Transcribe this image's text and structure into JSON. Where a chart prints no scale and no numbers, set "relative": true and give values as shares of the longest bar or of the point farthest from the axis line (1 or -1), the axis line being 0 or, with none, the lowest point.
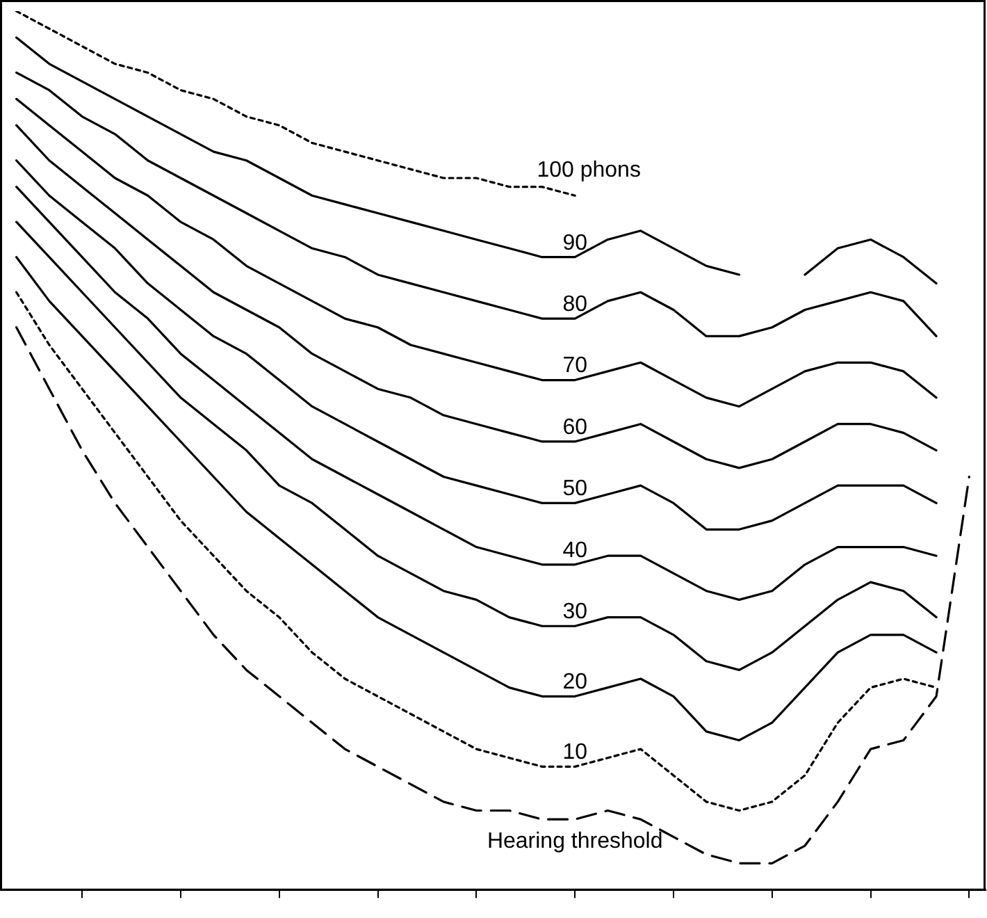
{
  "chart_data": {
    "type": "line",
    "relative": true,
    "legend": false,
    "grid": false,
    "marker": "none",
    "categories": [
      null,
      null,
      null,
      null,
      null,
      null,
      null,
      null,
      null,
      null,
      null,
      null,
      null,
      null,
      null,
      null,
      null,
      null,
      null,
      null,
      null,
      null,
      null,
      null,
      null,
      null,
      null,
      null,
      null,
      null
    ],
    "series": [
      {
        "name": "100 phons",
        "color": "#000000",
        "line_style": "dotted",
        "values": [
          1.0,
          0.98,
          0.96,
          0.94,
          0.93,
          0.91,
          0.9,
          0.88,
          0.87,
          0.85,
          0.84,
          0.83,
          0.82,
          0.81,
          0.81,
          0.8,
          0.8,
          0.79,
          null,
          null,
          null,
          null,
          null,
          null,
          null,
          null,
          null,
          null,
          null,
          null
        ]
      },
      {
        "name": "90",
        "color": "#000000",
        "line_style": "solid",
        "values": [
          0.97,
          0.94,
          0.92,
          0.9,
          0.88,
          0.86,
          0.84,
          0.83,
          0.81,
          0.79,
          0.78,
          0.77,
          0.76,
          0.75,
          0.74,
          0.73,
          0.72,
          0.72,
          0.74,
          0.75,
          0.73,
          0.71,
          0.7,
          null,
          0.7,
          0.73,
          0.74,
          0.72,
          0.69,
          null
        ]
      },
      {
        "name": "80",
        "color": "#000000",
        "line_style": "solid",
        "values": [
          0.93,
          0.91,
          0.88,
          0.86,
          0.83,
          0.81,
          0.79,
          0.77,
          0.75,
          0.73,
          0.72,
          0.7,
          0.69,
          0.68,
          0.67,
          0.66,
          0.65,
          0.65,
          0.67,
          0.68,
          0.66,
          0.63,
          0.63,
          0.64,
          0.66,
          0.67,
          0.68,
          0.67,
          0.63,
          null
        ]
      },
      {
        "name": "70",
        "color": "#000000",
        "line_style": "solid",
        "values": [
          0.9,
          0.87,
          0.84,
          0.81,
          0.79,
          0.76,
          0.74,
          0.71,
          0.69,
          0.67,
          0.65,
          0.64,
          0.62,
          0.61,
          0.6,
          0.59,
          0.58,
          0.58,
          0.59,
          0.6,
          0.58,
          0.56,
          0.55,
          0.57,
          0.59,
          0.6,
          0.6,
          0.59,
          0.56,
          null
        ]
      },
      {
        "name": "60",
        "color": "#000000",
        "line_style": "solid",
        "values": [
          0.87,
          0.83,
          0.8,
          0.77,
          0.74,
          0.71,
          0.68,
          0.66,
          0.64,
          0.61,
          0.59,
          0.57,
          0.56,
          0.54,
          0.53,
          0.52,
          0.51,
          0.51,
          0.52,
          0.53,
          0.51,
          0.49,
          0.48,
          0.49,
          0.51,
          0.53,
          0.53,
          0.52,
          0.5,
          null
        ]
      },
      {
        "name": "50",
        "color": "#000000",
        "line_style": "solid",
        "values": [
          0.83,
          0.79,
          0.76,
          0.73,
          0.69,
          0.66,
          0.63,
          0.61,
          0.58,
          0.55,
          0.53,
          0.51,
          0.49,
          0.47,
          0.46,
          0.45,
          0.44,
          0.44,
          0.45,
          0.46,
          0.44,
          0.41,
          0.41,
          0.42,
          0.44,
          0.46,
          0.46,
          0.46,
          0.44,
          null
        ]
      },
      {
        "name": "40",
        "color": "#000000",
        "line_style": "solid",
        "values": [
          0.8,
          0.76,
          0.72,
          0.68,
          0.65,
          0.61,
          0.58,
          0.55,
          0.52,
          0.49,
          0.47,
          0.45,
          0.43,
          0.41,
          0.39,
          0.38,
          0.37,
          0.37,
          0.38,
          0.38,
          0.36,
          0.34,
          0.33,
          0.34,
          0.37,
          0.39,
          0.39,
          0.39,
          0.38,
          null
        ]
      },
      {
        "name": "30",
        "color": "#000000",
        "line_style": "solid",
        "values": [
          0.76,
          0.72,
          0.68,
          0.64,
          0.6,
          0.56,
          0.53,
          0.5,
          0.46,
          0.44,
          0.41,
          0.38,
          0.36,
          0.34,
          0.33,
          0.31,
          0.3,
          0.3,
          0.31,
          0.31,
          0.29,
          0.26,
          0.25,
          0.27,
          0.3,
          0.33,
          0.35,
          0.34,
          0.31,
          null
        ]
      },
      {
        "name": "20",
        "color": "#000000",
        "line_style": "solid",
        "values": [
          0.72,
          0.67,
          0.63,
          0.59,
          0.55,
          0.51,
          0.47,
          0.43,
          0.4,
          0.37,
          0.34,
          0.31,
          0.29,
          0.27,
          0.25,
          0.23,
          0.22,
          0.22,
          0.23,
          0.24,
          0.22,
          0.18,
          0.17,
          0.19,
          0.23,
          0.27,
          0.29,
          0.29,
          0.27,
          null
        ]
      },
      {
        "name": "10",
        "color": "#000000",
        "line_style": "dotted",
        "values": [
          0.68,
          0.62,
          0.57,
          0.52,
          0.47,
          0.42,
          0.38,
          0.34,
          0.31,
          0.27,
          0.24,
          0.22,
          0.2,
          0.18,
          0.16,
          0.15,
          0.14,
          0.14,
          0.15,
          0.16,
          0.13,
          0.1,
          0.09,
          0.1,
          0.13,
          0.19,
          0.23,
          0.24,
          0.23,
          null
        ]
      },
      {
        "name": "Hearing threshold",
        "color": "#000000",
        "line_style": "dashed",
        "values": [
          0.64,
          0.57,
          0.5,
          0.44,
          0.39,
          0.34,
          0.29,
          0.25,
          0.22,
          0.19,
          0.16,
          0.14,
          0.12,
          0.1,
          0.09,
          0.09,
          0.08,
          0.08,
          0.09,
          0.08,
          0.06,
          0.04,
          0.03,
          0.03,
          0.05,
          0.1,
          0.16,
          0.17,
          0.22,
          0.47
        ]
      }
    ]
  }
}
